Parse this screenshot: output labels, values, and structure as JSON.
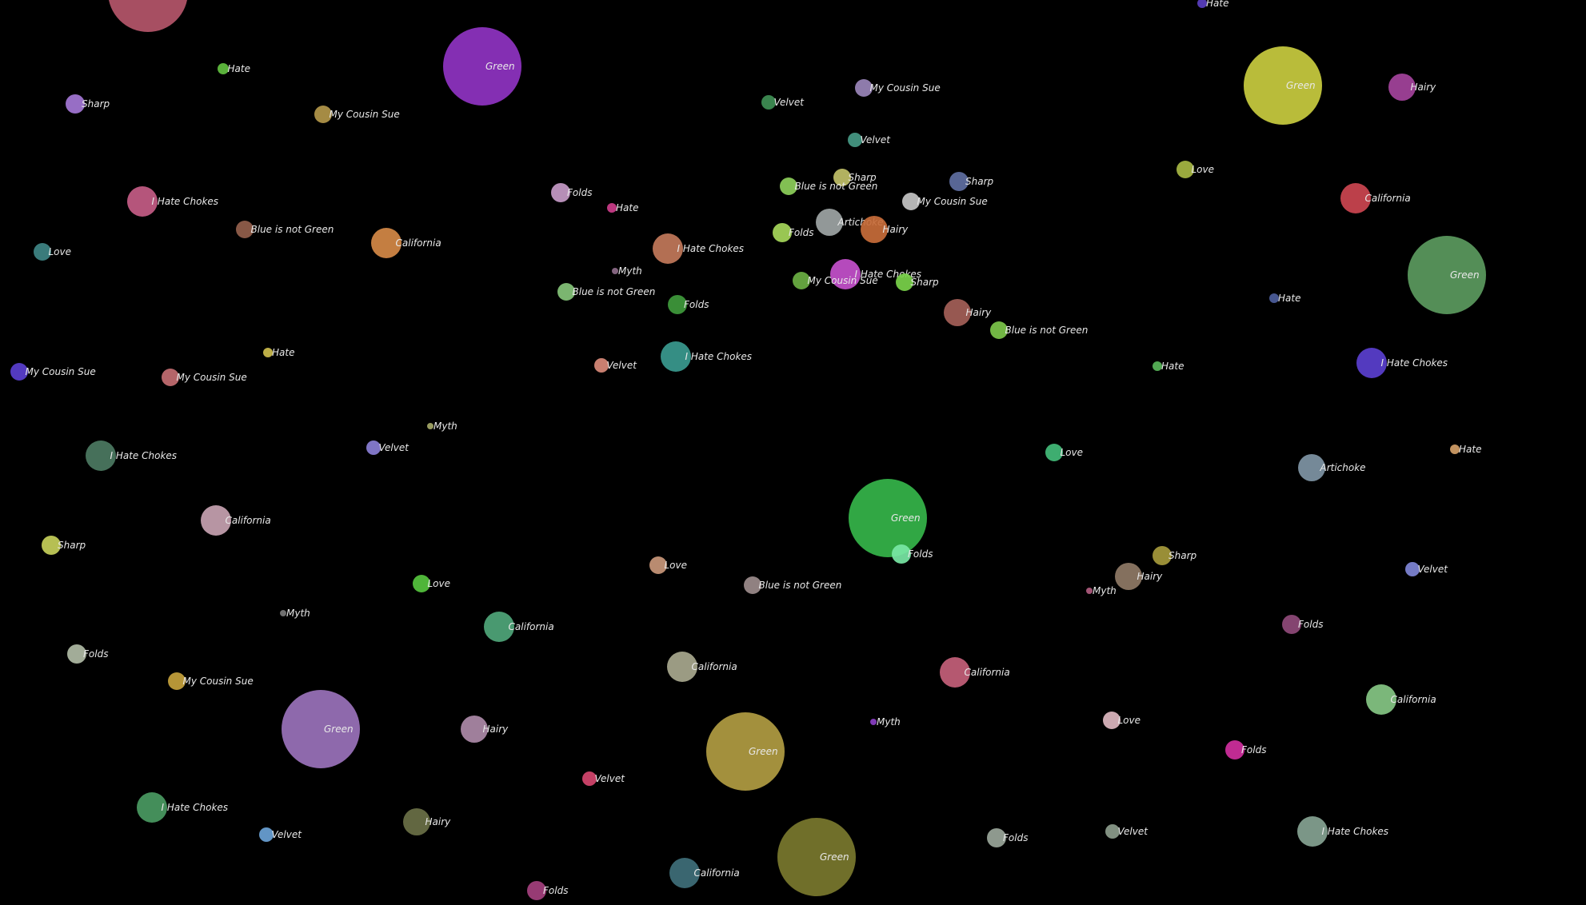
{
  "scene": {
    "background": "#000000",
    "bubbles": [
      {
        "label": "",
        "color": "#b5566a"
      },
      {
        "label": "Hate",
        "color": "#5a3fc0"
      },
      {
        "label": "Green",
        "color": "#8f33c2"
      },
      {
        "label": "Hate",
        "color": "#62c040"
      },
      {
        "label": "Sharp",
        "color": "#a477d6"
      },
      {
        "label": "My Cousin Sue",
        "color": "#b3974a"
      },
      {
        "label": "Velvet",
        "color": "#3f8f55"
      },
      {
        "label": "My Cousin Sue",
        "color": "#9a86ba"
      },
      {
        "label": "Green",
        "color": "#c9cc3f"
      },
      {
        "label": "Hairy",
        "color": "#a4439c"
      },
      {
        "label": "Velvet",
        "color": "#479a86"
      },
      {
        "label": "Sharp",
        "color": "#c1c068"
      },
      {
        "label": "Blue is not Green",
        "color": "#8dcf5a"
      },
      {
        "label": "Sharp",
        "color": "#5f6fa2"
      },
      {
        "label": "Love",
        "color": "#a7b743"
      },
      {
        "label": "I Hate Chokes",
        "color": "#c45c85"
      },
      {
        "label": "Folds",
        "color": "#c69ac7"
      },
      {
        "label": "Hate",
        "color": "#cc3d8a"
      },
      {
        "label": "Blue is not Green",
        "color": "#94604c"
      },
      {
        "label": "California",
        "color": "#d58946"
      },
      {
        "label": "Artichoke",
        "color": "#9ea5a5"
      },
      {
        "label": "Hairy",
        "color": "#c86c3a"
      },
      {
        "label": "My Cousin Sue",
        "color": "#c4c4c4"
      },
      {
        "label": "Folds",
        "color": "#a6d75a"
      },
      {
        "label": "I Hate Chokes",
        "color": "#c2785a"
      },
      {
        "label": "California",
        "color": "#cc4550"
      },
      {
        "label": "Love",
        "color": "#3f8585"
      },
      {
        "label": "Green",
        "color": "#5b9a5e"
      },
      {
        "label": "Myth",
        "color": "#8e6c8a"
      },
      {
        "label": "I Hate Chokes",
        "color": "#c450cc"
      },
      {
        "label": "My Cousin Sue",
        "color": "#6bb043"
      },
      {
        "label": "Sharp",
        "color": "#7ad34a"
      },
      {
        "label": "Blue is not Green",
        "color": "#86c47a"
      },
      {
        "label": "Folds",
        "color": "#3f9a3c"
      },
      {
        "label": "Hairy",
        "color": "#a46058"
      },
      {
        "label": "Hate",
        "color": "#4d5e9c"
      },
      {
        "label": "Blue is not Green",
        "color": "#7cc64a"
      },
      {
        "label": "Hate",
        "color": "#cdbd4d"
      },
      {
        "label": "I Hate Chokes",
        "color": "#399a8f"
      },
      {
        "label": "Velvet",
        "color": "#d98a7a"
      },
      {
        "label": "Hate",
        "color": "#59b65a"
      },
      {
        "label": "I Hate Chokes",
        "color": "#5a3fcf"
      },
      {
        "label": "My Cousin Sue",
        "color": "#5a3fcf"
      },
      {
        "label": "My Cousin Sue",
        "color": "#c46e72"
      },
      {
        "label": "Myth",
        "color": "#a5a868"
      },
      {
        "label": "Velvet",
        "color": "#8a7fd6"
      },
      {
        "label": "Love",
        "color": "#43bc7a"
      },
      {
        "label": "Hate",
        "color": "#d4a068"
      },
      {
        "label": "I Hate Chokes",
        "color": "#4c7a62"
      },
      {
        "label": "Artichoke",
        "color": "#7f95a5"
      },
      {
        "label": "Green",
        "color": "#35b54a"
      },
      {
        "label": "California",
        "color": "#c7a2b1"
      },
      {
        "label": "Folds",
        "color": "#78e7a5"
      },
      {
        "label": "Sharp",
        "color": "#c5cf5a"
      },
      {
        "label": "Sharp",
        "color": "#a69a3c"
      },
      {
        "label": "Velvet",
        "color": "#7f86d6"
      },
      {
        "label": "Love",
        "color": "#c9977a"
      },
      {
        "label": "Blue is not Green",
        "color": "#9c8c8c"
      },
      {
        "label": "Hairy",
        "color": "#8f7a66"
      },
      {
        "label": "Myth",
        "color": "#b05c7f"
      },
      {
        "label": "Love",
        "color": "#56c43e"
      },
      {
        "label": "Myth",
        "color": "#7a7a7a"
      },
      {
        "label": "California",
        "color": "#4fa67a"
      },
      {
        "label": "Folds",
        "color": "#8f4a7a"
      },
      {
        "label": "Folds",
        "color": "#b0bba5"
      },
      {
        "label": "California",
        "color": "#a8a88e"
      },
      {
        "label": "California",
        "color": "#c4607a"
      },
      {
        "label": "My Cousin Sue",
        "color": "#c6a23c"
      },
      {
        "label": "California",
        "color": "#86c784"
      },
      {
        "label": "Green",
        "color": "#9a72bb"
      },
      {
        "label": "Hairy",
        "color": "#ad8aa8"
      },
      {
        "label": "Myth",
        "color": "#8a3fc4"
      },
      {
        "label": "Love",
        "color": "#ddb7c0"
      },
      {
        "label": "Green",
        "color": "#b19c42"
      },
      {
        "label": "Folds",
        "color": "#d02f9e"
      },
      {
        "label": "Velvet",
        "color": "#d5456e"
      },
      {
        "label": "I Hate Chokes",
        "color": "#4a9a62"
      },
      {
        "label": "Hairy",
        "color": "#6a7046"
      },
      {
        "label": "Velvet",
        "color": "#6aa2d6"
      },
      {
        "label": "Green",
        "color": "#7a782e"
      },
      {
        "label": "Folds",
        "color": "#9aa69a"
      },
      {
        "label": "Velvet",
        "color": "#8c9c8c"
      },
      {
        "label": "I Hate Chokes",
        "color": "#86a392"
      },
      {
        "label": "California",
        "color": "#3f6f7a"
      },
      {
        "label": "Folds",
        "color": "#a4407e"
      }
    ]
  }
}
